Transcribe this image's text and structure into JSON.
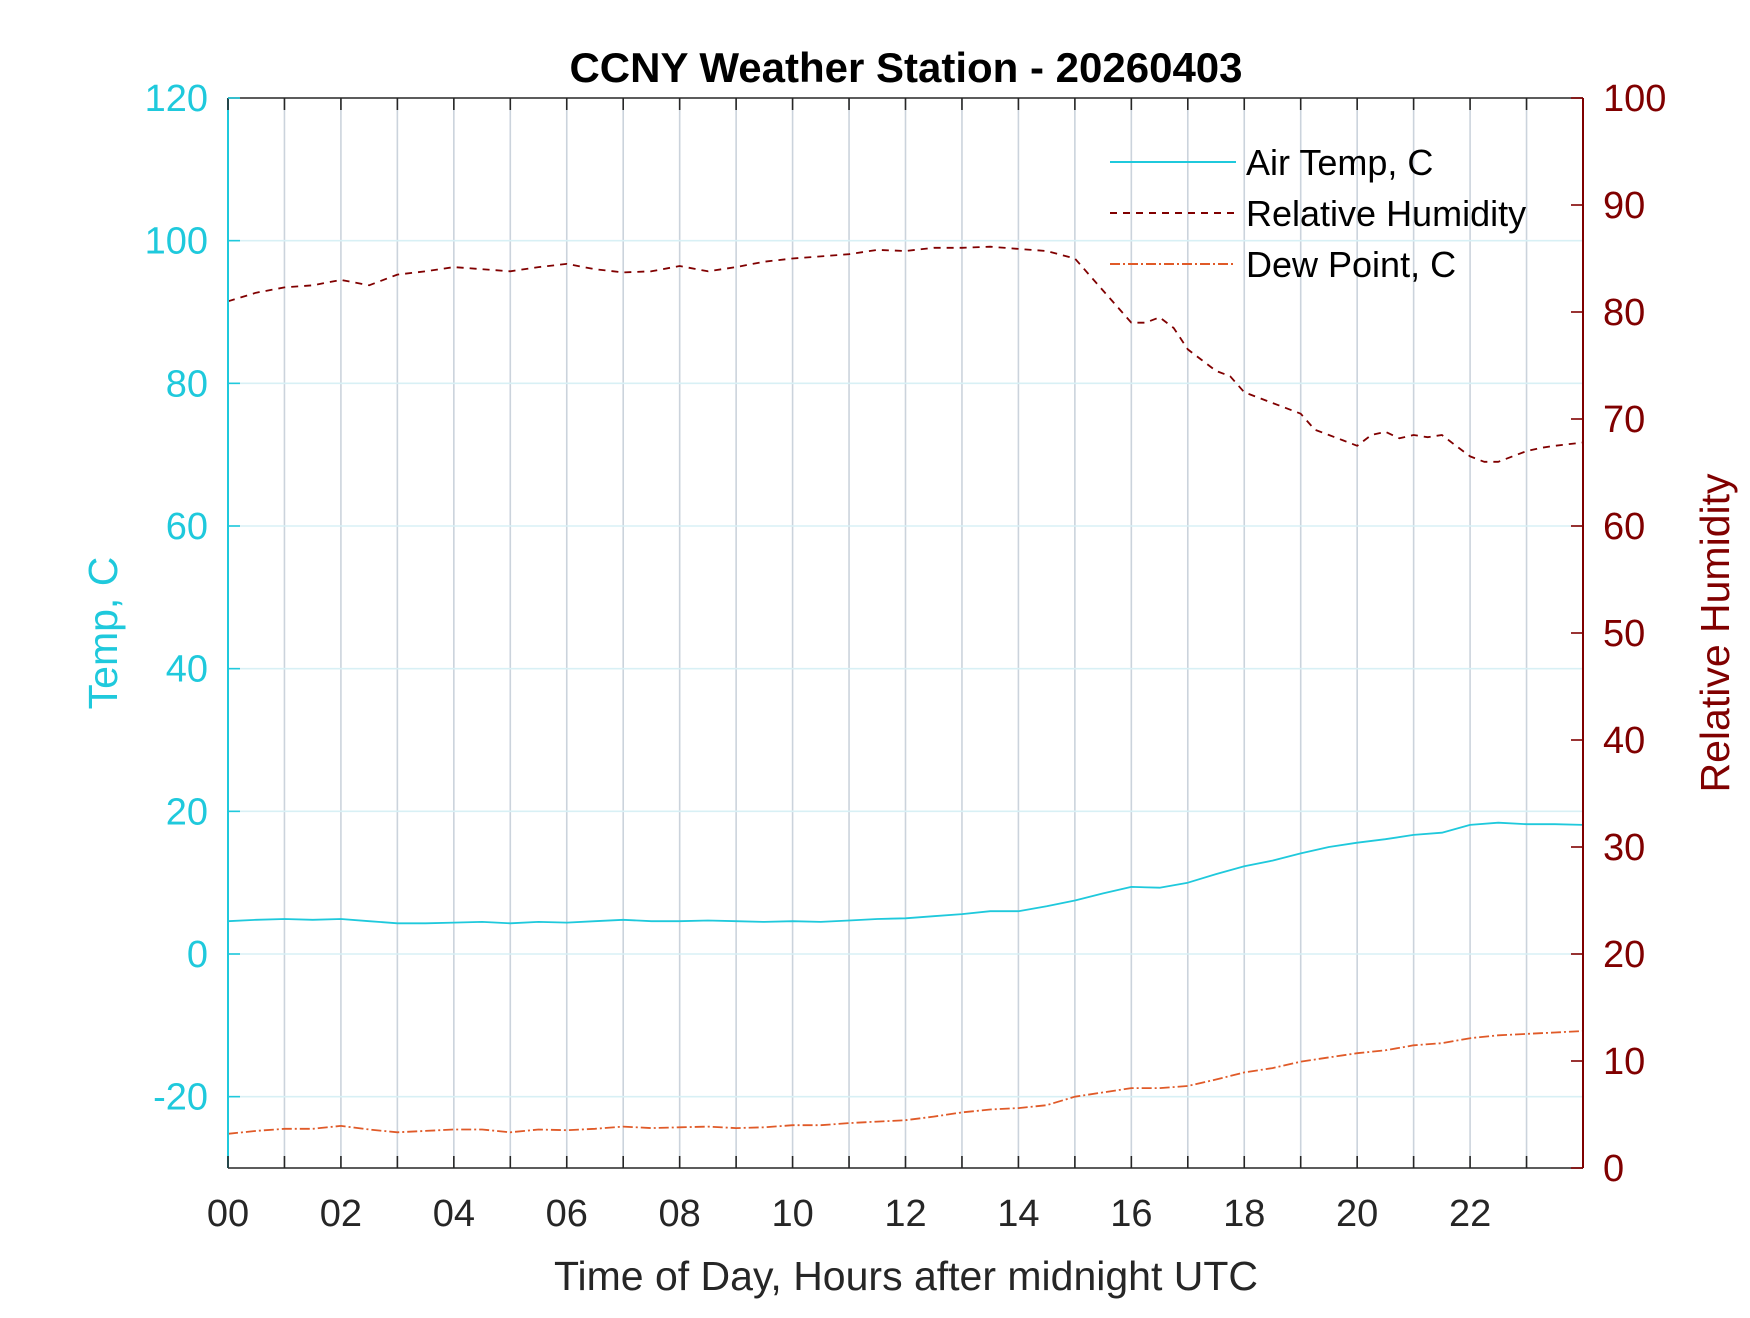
{
  "chart_data": {
    "type": "line",
    "title": "CCNY Weather Station - 20260403",
    "xlabel": "Time of Day, Hours after midnight UTC",
    "ylabel_left": "Temp, C",
    "ylabel_right": "Relative Humidity",
    "xlim": [
      0,
      24
    ],
    "ylim_left": [
      -30,
      120
    ],
    "ylim_right": [
      0,
      100
    ],
    "x_ticks": [
      0,
      1,
      2,
      3,
      4,
      5,
      6,
      7,
      8,
      9,
      10,
      11,
      12,
      13,
      14,
      15,
      16,
      17,
      18,
      19,
      20,
      21,
      22,
      23
    ],
    "x_tick_labels": [
      "00",
      "02",
      "04",
      "06",
      "08",
      "10",
      "12",
      "14",
      "16",
      "18",
      "20",
      "22"
    ],
    "y_ticks_left": [
      "-20",
      "0",
      "20",
      "40",
      "60",
      "80",
      "100",
      "120"
    ],
    "y_ticks_right": [
      "0",
      "10",
      "20",
      "30",
      "40",
      "50",
      "60",
      "70",
      "80",
      "90",
      "100"
    ],
    "grid": true,
    "legend_position": "top-right",
    "colors": {
      "temp_axis": "#1FC9DC",
      "rh_axis": "#800000",
      "dew": "#E05A28",
      "grid_vertical": "#CBD3DC",
      "grid_horizontal": "#D8F0F5",
      "frame": "#262626"
    },
    "series": [
      {
        "name": "Air Temp, C",
        "axis": "left",
        "style": "solid",
        "x": [
          0,
          0.5,
          1,
          1.5,
          2,
          2.5,
          3,
          3.5,
          4,
          4.5,
          5,
          5.5,
          6,
          6.5,
          7,
          7.5,
          8,
          8.5,
          9,
          9.5,
          10,
          10.5,
          11,
          11.5,
          12,
          12.5,
          13,
          13.5,
          14,
          14.5,
          15,
          15.5,
          16,
          16.5,
          17,
          17.5,
          18,
          18.5,
          19,
          19.5,
          20,
          20.5,
          21,
          21.5,
          22,
          22.5,
          23,
          23.5,
          24
        ],
        "values": [
          4.6,
          4.8,
          4.9,
          4.8,
          4.9,
          4.6,
          4.3,
          4.3,
          4.4,
          4.5,
          4.3,
          4.5,
          4.4,
          4.6,
          4.8,
          4.6,
          4.6,
          4.7,
          4.6,
          4.5,
          4.6,
          4.5,
          4.7,
          4.9,
          5.0,
          5.3,
          5.6,
          6.0,
          6.0,
          6.7,
          7.5,
          8.5,
          9.4,
          9.3,
          10.0,
          11.2,
          12.3,
          13.1,
          14.1,
          15.0,
          15.6,
          16.1,
          16.7,
          17.0,
          18.1,
          18.4,
          18.2,
          18.2,
          18.1
        ]
      },
      {
        "name": "Relative Humidity",
        "axis": "right",
        "style": "dashed",
        "x": [
          0,
          0.5,
          1,
          1.5,
          2,
          2.5,
          3,
          3.5,
          4,
          4.5,
          5,
          5.5,
          6,
          6.5,
          7,
          7.5,
          8,
          8.5,
          9,
          9.5,
          10,
          10.5,
          11,
          11.5,
          12,
          12.5,
          13,
          13.5,
          14,
          14.5,
          15,
          15.25,
          15.5,
          15.75,
          16,
          16.25,
          16.5,
          16.75,
          17,
          17.25,
          17.5,
          17.75,
          18,
          18.25,
          18.5,
          18.75,
          19,
          19.25,
          19.5,
          19.75,
          20,
          20.25,
          20.5,
          20.75,
          21,
          21.25,
          21.5,
          21.75,
          22,
          22.25,
          22.5,
          22.75,
          23,
          23.25,
          23.5,
          24
        ],
        "values": [
          81.0,
          81.8,
          82.3,
          82.5,
          83.0,
          82.5,
          83.5,
          83.8,
          84.2,
          84.0,
          83.8,
          84.2,
          84.5,
          84.0,
          83.7,
          83.8,
          84.3,
          83.8,
          84.2,
          84.7,
          85.0,
          85.2,
          85.4,
          85.8,
          85.7,
          86.0,
          86.0,
          86.1,
          85.9,
          85.7,
          85.0,
          83.5,
          82.0,
          80.5,
          79.0,
          79.0,
          79.5,
          78.5,
          76.5,
          75.5,
          74.5,
          74.0,
          72.5,
          72.0,
          71.5,
          71.0,
          70.5,
          69.0,
          68.5,
          68.0,
          67.5,
          68.5,
          68.8,
          68.2,
          68.5,
          68.3,
          68.5,
          67.5,
          66.5,
          66.0,
          66.0,
          66.5,
          67.0,
          67.3,
          67.5,
          67.8
        ]
      },
      {
        "name": "Dew Point, C",
        "axis": "left",
        "style": "dashdot",
        "x": [
          0,
          0.5,
          1,
          1.5,
          2,
          2.5,
          3,
          3.5,
          4,
          4.5,
          5,
          5.5,
          6,
          6.5,
          7,
          7.5,
          8,
          8.5,
          9,
          9.5,
          10,
          10.5,
          11,
          11.5,
          12,
          12.5,
          13,
          13.5,
          14,
          14.5,
          15,
          15.5,
          16,
          16.5,
          17,
          17.5,
          18,
          18.5,
          19,
          19.5,
          20,
          20.5,
          21,
          21.5,
          22,
          22.5,
          23,
          23.5,
          24
        ],
        "values": [
          -25.2,
          -24.8,
          -24.5,
          -24.5,
          -24.1,
          -24.6,
          -25.0,
          -24.8,
          -24.6,
          -24.6,
          -25.0,
          -24.6,
          -24.7,
          -24.5,
          -24.2,
          -24.4,
          -24.3,
          -24.2,
          -24.4,
          -24.3,
          -24.0,
          -24.0,
          -23.7,
          -23.5,
          -23.3,
          -22.8,
          -22.2,
          -21.8,
          -21.6,
          -21.2,
          -20.0,
          -19.4,
          -18.8,
          -18.8,
          -18.5,
          -17.6,
          -16.6,
          -16.0,
          -15.1,
          -14.5,
          -13.9,
          -13.5,
          -12.8,
          -12.5,
          -11.8,
          -11.4,
          -11.2,
          -11.0,
          -10.8
        ]
      }
    ]
  }
}
